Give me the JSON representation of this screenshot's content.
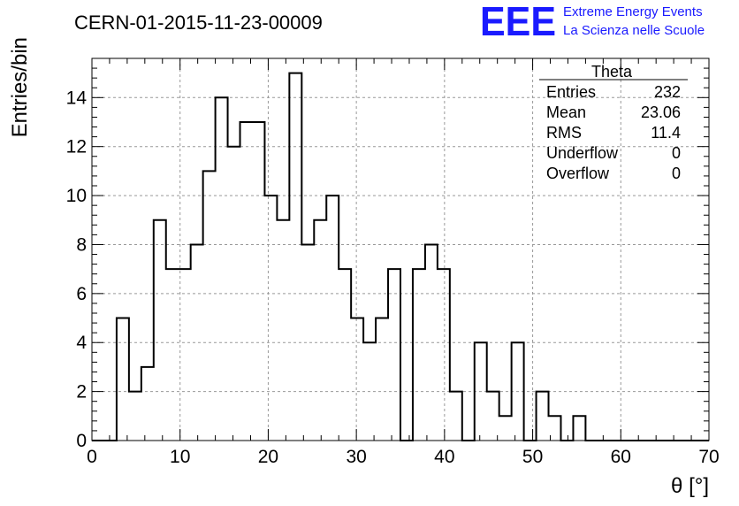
{
  "branding": {
    "logo_text": "EEE",
    "line1": "Extreme Energy Events",
    "line2": "La Scienza nelle Scuole",
    "color": "#1a1aff"
  },
  "stats_box": {
    "title": "Theta",
    "rows": [
      {
        "label": "Entries",
        "value": "232"
      },
      {
        "label": "Mean",
        "value": "23.06"
      },
      {
        "label": "RMS",
        "value": "11.4"
      },
      {
        "label": "Underflow",
        "value": "0"
      },
      {
        "label": "Overflow",
        "value": "0"
      }
    ]
  },
  "chart_data": {
    "type": "bar",
    "title": "CERN-01-2015-11-23-00009",
    "xlabel": "θ [°]",
    "ylabel": "Entries/bin",
    "xlim": [
      0,
      70
    ],
    "ylim": [
      0,
      15.6
    ],
    "grid": true,
    "bin_width": 1.4,
    "x_ticks": [
      0,
      10,
      20,
      30,
      40,
      50,
      60,
      70
    ],
    "y_ticks": [
      0,
      2,
      4,
      6,
      8,
      10,
      12,
      14
    ],
    "bin_edges": [
      0,
      1.4,
      2.8,
      4.2,
      5.6,
      7.0,
      8.4,
      9.8,
      11.2,
      12.6,
      14.0,
      15.4,
      16.8,
      18.2,
      19.6,
      21.0,
      22.4,
      23.8,
      25.2,
      26.6,
      28.0,
      29.4,
      30.8,
      32.2,
      33.6,
      35.0,
      36.4,
      37.8,
      39.2,
      40.6,
      42.0,
      43.4,
      44.8,
      46.2,
      47.6,
      49.0,
      50.4,
      51.8,
      53.2,
      54.6,
      56.0,
      57.4,
      58.8,
      60.2,
      61.6,
      63.0,
      64.4,
      65.8,
      67.2,
      68.6,
      70.0
    ],
    "values": [
      0,
      0,
      5,
      2,
      3,
      9,
      7,
      7,
      8,
      11,
      14,
      12,
      13,
      13,
      10,
      9,
      15,
      8,
      9,
      10,
      7,
      5,
      4,
      5,
      7,
      0,
      7,
      8,
      7,
      2,
      0,
      4,
      2,
      1,
      4,
      0,
      2,
      1,
      0,
      1,
      0,
      0,
      0,
      0,
      0,
      0,
      0,
      0,
      0,
      0
    ],
    "line_color": "#000000",
    "grid_color": "#999999"
  }
}
